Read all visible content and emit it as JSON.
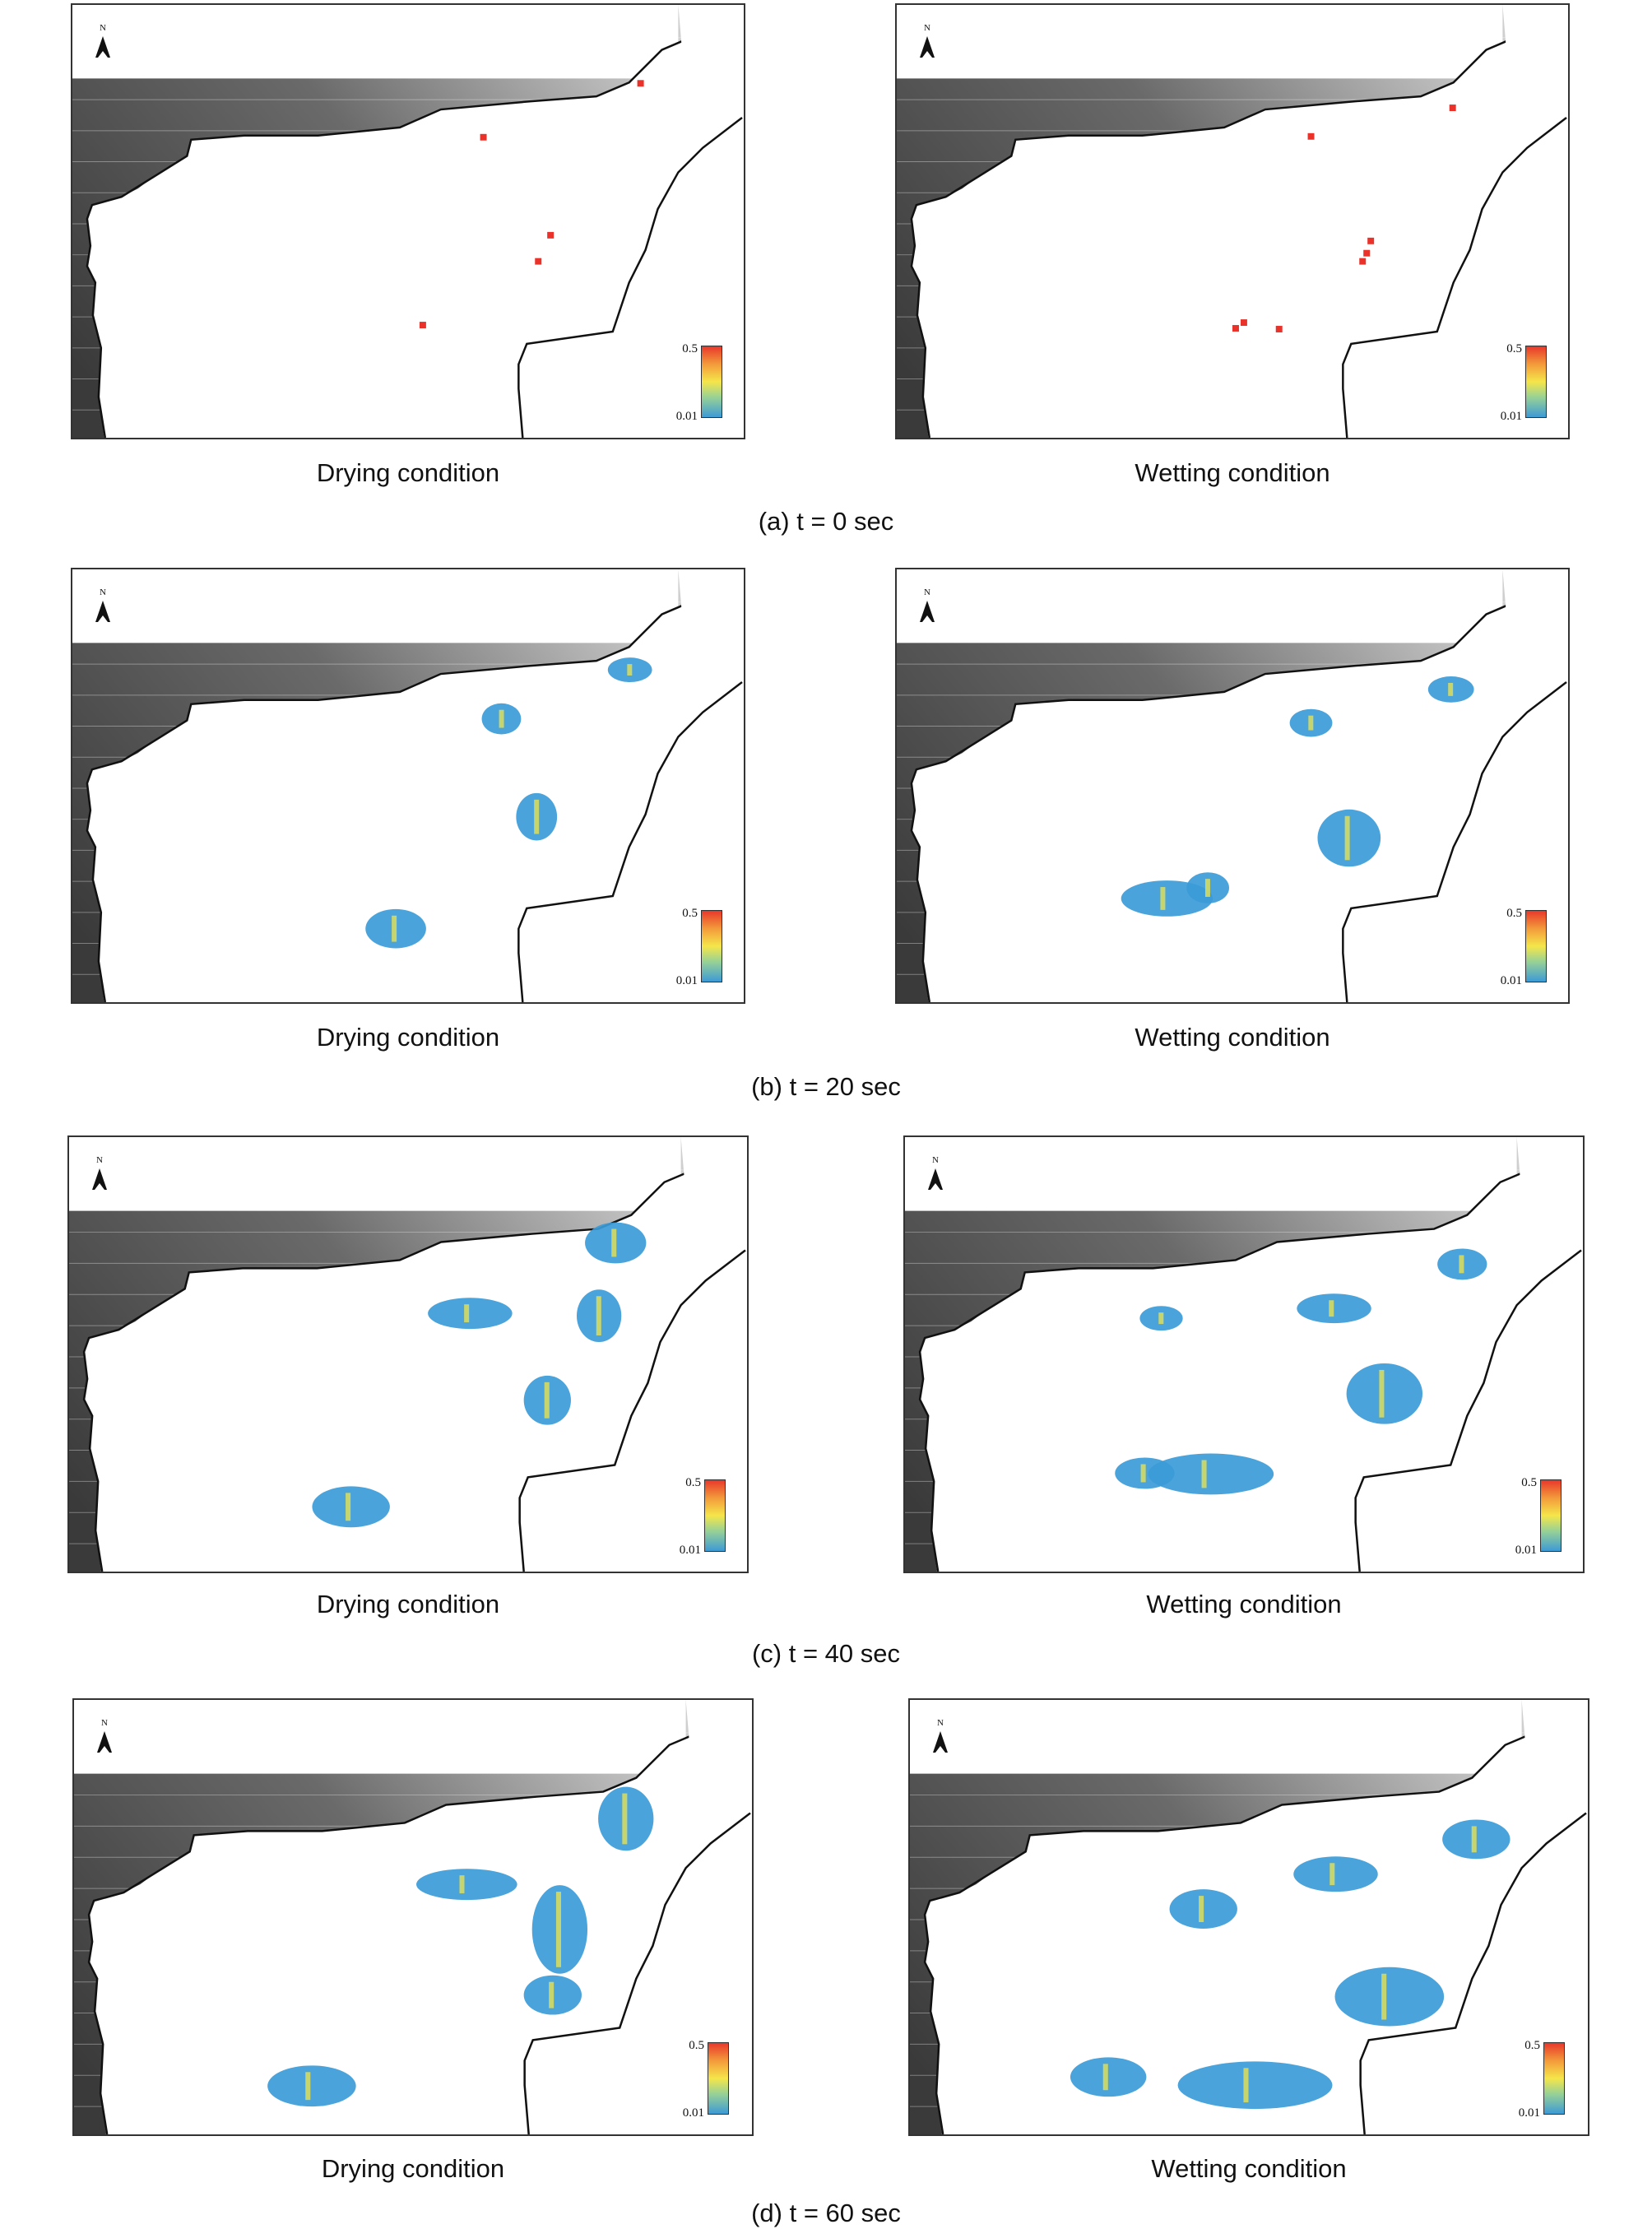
{
  "map_symbols": {
    "north_label": "N",
    "north_icon": "north-arrow-icon"
  },
  "legend": {
    "max_label": "0.5",
    "min_label": "0.01",
    "colors": [
      "#3d9ad6",
      "#97d196",
      "#f5e64a",
      "#f39a3a",
      "#e8382b"
    ]
  },
  "colors": {
    "terrain_dark": "#3a3a3a",
    "terrain_light": "#cfcfcf",
    "seed": "#e8322a",
    "spread": "#3b9bd8",
    "hot": "#f2e64b"
  },
  "panels": [
    {
      "step": "0",
      "caption": "(a) t = 0 sec",
      "left_label": "Drying condition",
      "right_label": "Wetting condition"
    },
    {
      "step": "20",
      "caption": "(b) t = 20 sec",
      "left_label": "Drying condition",
      "right_label": "Wetting condition"
    },
    {
      "step": "40",
      "caption": "(c) t = 40 sec",
      "left_label": "Drying condition",
      "right_label": "Wetting condition"
    },
    {
      "step": "60",
      "caption": "(d) t = 60 sec",
      "left_label": "Drying condition",
      "right_label": "Wetting condition"
    }
  ]
}
